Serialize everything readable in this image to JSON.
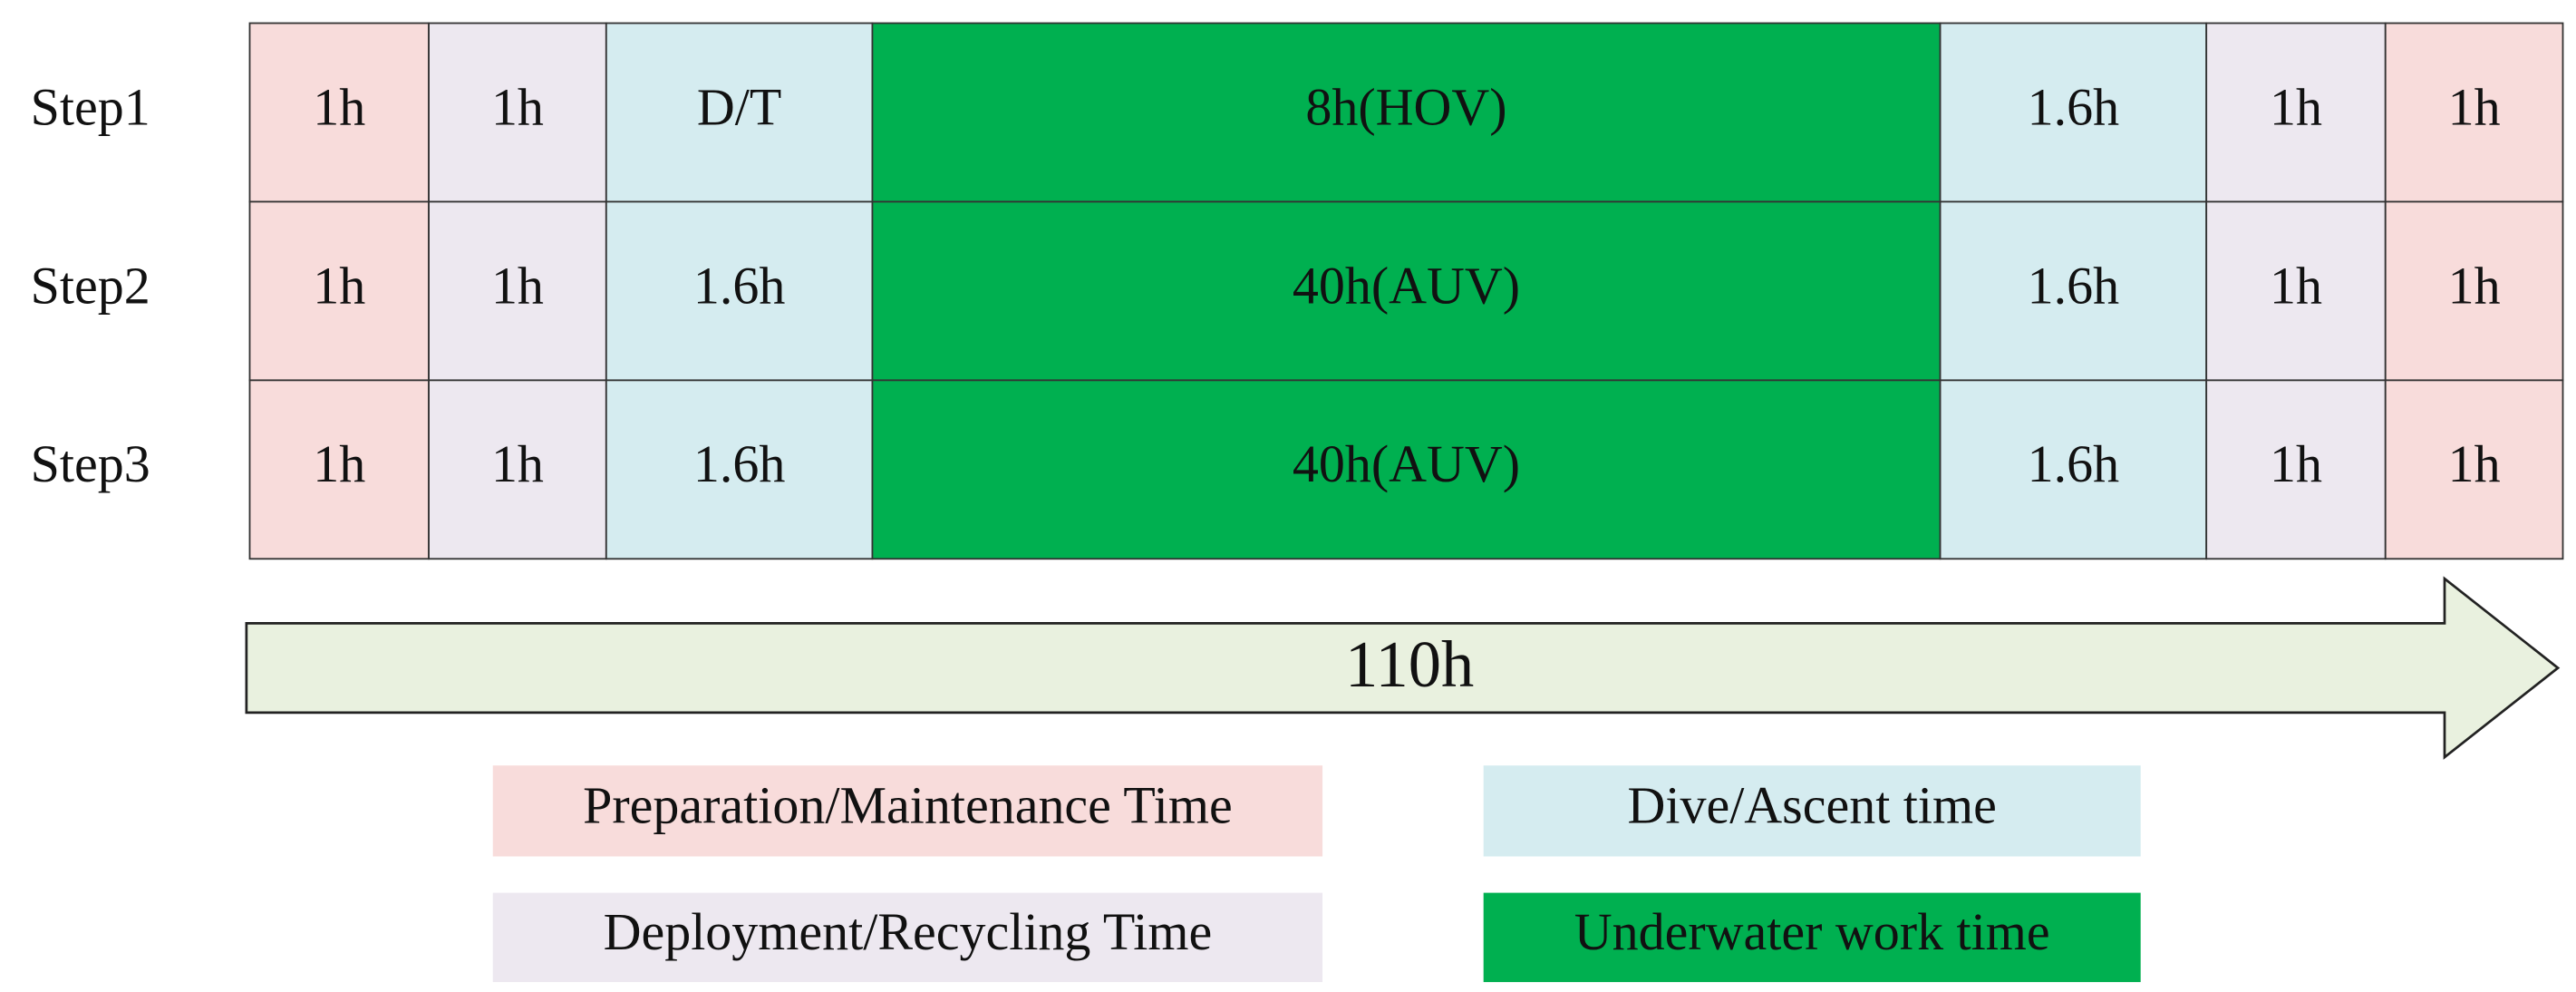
{
  "rows": [
    {
      "label": "Step1",
      "cells": [
        "1h",
        "1h",
        "D/T",
        "8h(HOV)",
        "1.6h",
        "1h",
        "1h"
      ]
    },
    {
      "label": "Step2",
      "cells": [
        "1h",
        "1h",
        "1.6h",
        "40h(AUV)",
        "1.6h",
        "1h",
        "1h"
      ]
    },
    {
      "label": "Step3",
      "cells": [
        "1h",
        "1h",
        "1.6h",
        "40h(AUV)",
        "1.6h",
        "1h",
        "1h"
      ]
    }
  ],
  "arrow": {
    "label": "110h"
  },
  "legend": [
    "Preparation/Maintenance Time",
    "Dive/Ascent time",
    "Deployment/Recycling Time",
    "Underwater work time"
  ]
}
